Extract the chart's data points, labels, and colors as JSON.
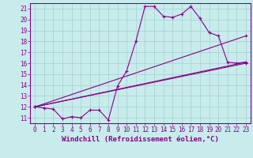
{
  "background_color": "#c8ecec",
  "grid_color": "#aad4d4",
  "line_color": "#880088",
  "xlim": [
    -0.5,
    23.5
  ],
  "ylim": [
    10.5,
    21.5
  ],
  "xticks": [
    0,
    1,
    2,
    3,
    4,
    5,
    6,
    7,
    8,
    9,
    10,
    11,
    12,
    13,
    14,
    15,
    16,
    17,
    18,
    19,
    20,
    21,
    22,
    23
  ],
  "yticks": [
    11,
    12,
    13,
    14,
    15,
    16,
    17,
    18,
    19,
    20,
    21
  ],
  "line1_x": [
    0,
    1,
    2,
    3,
    4,
    5,
    6,
    7,
    8,
    9,
    10,
    11,
    12,
    13,
    14,
    15,
    16,
    17,
    18,
    19,
    20,
    21,
    22,
    23
  ],
  "line1_y": [
    12.0,
    11.9,
    11.8,
    10.9,
    11.1,
    11.0,
    11.7,
    11.7,
    10.8,
    13.9,
    15.3,
    18.0,
    21.2,
    21.2,
    20.3,
    20.2,
    20.5,
    21.2,
    20.1,
    18.8,
    18.5,
    16.1,
    16.0,
    16.1
  ],
  "line2_x": [
    0,
    23
  ],
  "line2_y": [
    12.0,
    18.5
  ],
  "line3_x": [
    0,
    23
  ],
  "line3_y": [
    12.0,
    16.1
  ],
  "line4_x": [
    0,
    23
  ],
  "line4_y": [
    12.0,
    16.0
  ],
  "xlabel": "Windchill (Refroidissement éolien,°C)",
  "tick_fontsize": 5.5,
  "xlabel_fontsize": 6.5
}
